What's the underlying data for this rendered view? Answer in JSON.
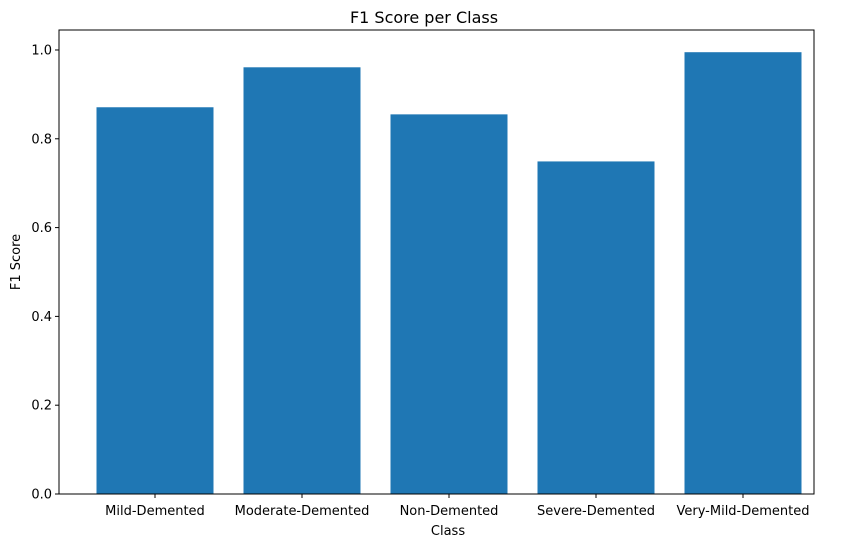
{
  "chart_data": {
    "type": "bar",
    "title": "F1 Score per Class",
    "xlabel": "Class",
    "ylabel": "F1 Score",
    "categories": [
      "Mild-Demented",
      "Moderate-Demented",
      "Non-Demented",
      "Severe-Demented",
      "Very-Mild-Demented"
    ],
    "values": [
      0.871,
      0.961,
      0.855,
      0.749,
      0.995
    ],
    "ylim": [
      0,
      1.045
    ],
    "yticks": [
      "0.0",
      "0.2",
      "0.4",
      "0.6",
      "0.8",
      "1.0"
    ],
    "bar_color": "#1f77b4",
    "grid": false,
    "legend": "none"
  }
}
